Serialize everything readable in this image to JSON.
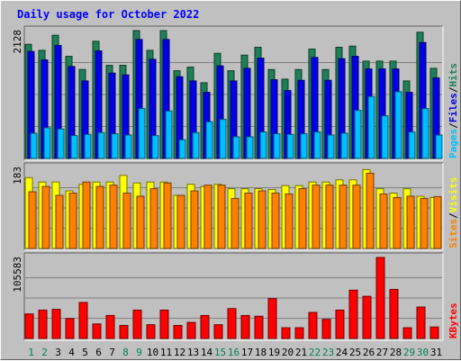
{
  "chart_data": [
    {
      "panel": "hits-files-pages",
      "type": "bar",
      "title": "Daily usage for October 2022",
      "ylabel_parts": [
        "Pages",
        "/",
        "Files",
        "/",
        "Hits"
      ],
      "ymax_label": "2128",
      "ylim": [
        0,
        2128
      ],
      "categories": [
        "1",
        "2",
        "3",
        "4",
        "5",
        "6",
        "7",
        "8",
        "9",
        "10",
        "11",
        "12",
        "13",
        "14",
        "15",
        "16",
        "17",
        "18",
        "19",
        "20",
        "21",
        "22",
        "23",
        "24",
        "25",
        "26",
        "27",
        "28",
        "29",
        "30",
        "31"
      ],
      "weekend_days": [
        "1",
        "2",
        "8",
        "9",
        "15",
        "16",
        "22",
        "23",
        "29",
        "30"
      ],
      "series": [
        {
          "name": "Hits",
          "color": "#1e8058",
          "values": [
            1900,
            1800,
            2050,
            1700,
            1480,
            1950,
            1550,
            1550,
            2128,
            1800,
            2128,
            1460,
            1520,
            1260,
            1750,
            1460,
            1720,
            1850,
            1480,
            1320,
            1480,
            1820,
            1480,
            1850,
            1870,
            1620,
            1620,
            1620,
            1290,
            2100,
            1500
          ]
        },
        {
          "name": "Files",
          "color": "#0000e6",
          "values": [
            1780,
            1640,
            1880,
            1530,
            1290,
            1790,
            1420,
            1390,
            1980,
            1650,
            1980,
            1360,
            1290,
            1100,
            1540,
            1290,
            1500,
            1670,
            1310,
            1130,
            1300,
            1680,
            1300,
            1660,
            1700,
            1490,
            1490,
            1490,
            1100,
            1930,
            1340
          ]
        },
        {
          "name": "Pages",
          "color": "#00bfff",
          "values": [
            420,
            510,
            490,
            380,
            400,
            430,
            410,
            390,
            830,
            380,
            790,
            310,
            430,
            610,
            650,
            360,
            360,
            440,
            410,
            400,
            410,
            440,
            390,
            420,
            800,
            1030,
            710,
            1110,
            440,
            830,
            390
          ]
        }
      ]
    },
    {
      "panel": "visits-sites",
      "type": "bar",
      "ylabel_parts": [
        "Sites",
        "/",
        "Visits"
      ],
      "ymax_label": "183",
      "ylim": [
        0,
        183
      ],
      "series": [
        {
          "name": "Visits",
          "color": "#ffff00",
          "values": [
            160,
            150,
            150,
            130,
            145,
            150,
            150,
            165,
            148,
            150,
            150,
            120,
            145,
            140,
            145,
            135,
            135,
            135,
            133,
            142,
            142,
            150,
            150,
            155,
            155,
            178,
            135,
            125,
            135,
            118,
            115
          ]
        },
        {
          "name": "Sites",
          "color": "#ff8000",
          "values": [
            128,
            140,
            120,
            125,
            150,
            140,
            143,
            125,
            118,
            135,
            148,
            120,
            130,
            143,
            143,
            113,
            125,
            130,
            125,
            123,
            135,
            143,
            143,
            143,
            143,
            170,
            123,
            115,
            118,
            113,
            117
          ]
        }
      ]
    },
    {
      "panel": "kbytes",
      "type": "bar",
      "ylabel_parts": [
        "KBytes"
      ],
      "ymax_label": "105583",
      "ylim": [
        0,
        105583
      ],
      "series": [
        {
          "name": "KBytes",
          "color": "#ff0000",
          "values": [
            32000,
            37000,
            38000,
            26000,
            47000,
            19000,
            30000,
            17000,
            37000,
            18000,
            37000,
            17000,
            21000,
            30000,
            18000,
            39000,
            30000,
            29000,
            52000,
            14000,
            14000,
            34000,
            25000,
            37000,
            63000,
            55000,
            105583,
            64000,
            14000,
            41000,
            15000
          ]
        }
      ]
    }
  ]
}
